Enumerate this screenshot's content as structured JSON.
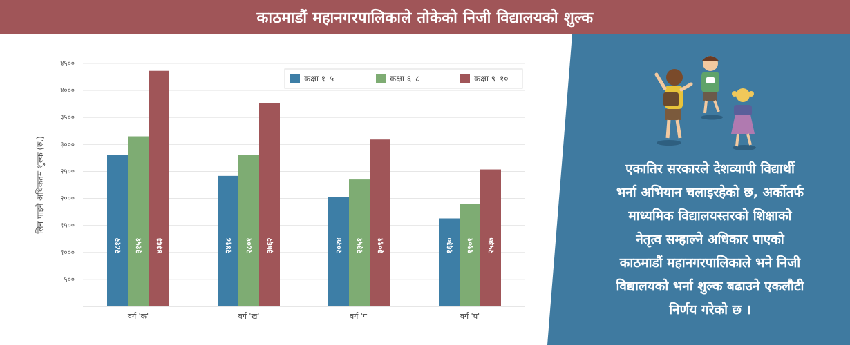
{
  "header": {
    "title": "काठमाडौं महानगरपालिकाले तोकेको निजी विद्यालयको शुल्क"
  },
  "panel": {
    "lines": [
      "एकातिर सरकारले देशव्यापी विद्यार्थी",
      "भर्ना अभियान चलाइरहेको छ, अर्कोतर्फ",
      "माध्यमिक विद्यालयस्तरको शिक्षाको",
      "नेतृत्व सम्हाल्ने अधिकार पाएको",
      "काठमाडौं महानगरपालिकाले भने निजी",
      "विद्यालयको भर्ना शुल्क बढाउने एकलौटी",
      "निर्णय गरेको छ ।"
    ],
    "background_color": "#3f7aa0",
    "illustration_icon": "running-children-icon"
  },
  "chart_data": {
    "type": "bar",
    "ylabel": "लिन पाइने अधिकतम शुल्क (रु.)",
    "ylim": [
      0,
      4500
    ],
    "yticks": [
      500,
      1000,
      1500,
      2000,
      2500,
      3000,
      3500,
      4000,
      4500
    ],
    "ytick_labels": [
      "५००",
      "१०००",
      "१५००",
      "२०००",
      "२५००",
      "३०००",
      "३५००",
      "४०००",
      "४५००"
    ],
    "categories": [
      "वर्ग 'क'",
      "वर्ग 'ख'",
      "वर्ग 'ग'",
      "वर्ग 'घ'"
    ],
    "series": [
      {
        "name": "कक्षा १–५",
        "color": "#3d7ea6",
        "values": [
          2812,
          2418,
          2024,
          1630
        ],
        "labels": [
          "२८१२",
          "२४१८",
          "२०२४",
          "१६३०"
        ]
      },
      {
        "name": "कक्षा ६–८",
        "color": "#7eac73",
        "values": [
          3151,
          2801,
          2351,
          1901
        ],
        "labels": [
          "३१५१",
          "२८०१",
          "२३५१",
          "१९०१"
        ]
      },
      {
        "name": "कक्षा ९–१०",
        "color": "#a05558",
        "values": [
          4363,
          3762,
          3091,
          2537
        ],
        "labels": [
          "४३६३",
          "३७६२",
          "३०९१",
          "२५३७"
        ]
      }
    ],
    "grid": true,
    "legend": "top-right"
  }
}
